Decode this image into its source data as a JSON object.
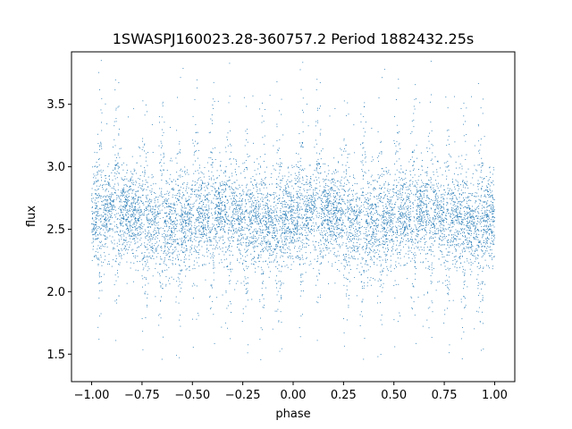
{
  "chart_data": {
    "type": "scatter",
    "title": "1SWASPJ160023.28-360757.2 Period 1882432.25s",
    "xlabel": "phase",
    "ylabel": "flux",
    "xlim": [
      -1.1,
      1.1
    ],
    "ylim": [
      1.28,
      3.92
    ],
    "x_ticks": [
      -1.0,
      -0.75,
      -0.5,
      -0.25,
      0.0,
      0.25,
      0.5,
      0.75,
      1.0
    ],
    "x_tick_labels": [
      "−1.00",
      "−0.75",
      "−0.50",
      "−0.25",
      "0.00",
      "0.25",
      "0.50",
      "0.75",
      "1.00"
    ],
    "y_ticks": [
      1.5,
      2.0,
      2.5,
      3.0,
      3.5
    ],
    "y_tick_labels": [
      "1.5",
      "2.0",
      "2.5",
      "3.0",
      "3.5"
    ],
    "grid": false,
    "legend": "none",
    "series_color": "#1f77b4",
    "phase_range": [
      -1.0,
      1.0
    ],
    "flux_center": 2.6,
    "flux_core_range": [
      2.1,
      3.1
    ],
    "flux_extreme_range": [
      1.45,
      3.85
    ]
  }
}
